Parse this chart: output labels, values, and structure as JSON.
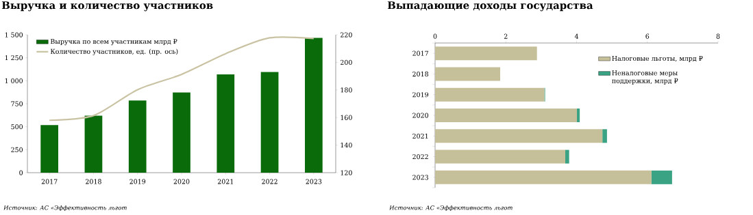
{
  "chart_data": [
    {
      "type": "bar",
      "title": "Выручка и количество участников",
      "categories": [
        "2017",
        "2018",
        "2019",
        "2020",
        "2021",
        "2022",
        "2023"
      ],
      "series": [
        {
          "name": "Выручка по всем участникам млрд ₽",
          "type": "bar",
          "color": "#0a6b0a",
          "values": [
            518,
            620,
            785,
            872,
            1069,
            1095,
            1467
          ]
        },
        {
          "name": "Количество участников, ед. (пр. ось)",
          "type": "line",
          "axis": "y2",
          "color": "#c9c3a3",
          "values": [
            158,
            161.4,
            180.2,
            191.3,
            206.3,
            217.8,
            217.3
          ]
        }
      ],
      "ylim": [
        0,
        1500
      ],
      "yticks": [
        0,
        250,
        500,
        750,
        {
          "value": 1000,
          "label": "1 000"
        },
        {
          "value": 1250,
          "label": "1 250"
        },
        {
          "value": 1500,
          "label": "1 500"
        }
      ],
      "y2lim": [
        120,
        220
      ],
      "y2ticks": [
        120,
        140,
        160,
        180,
        200,
        220
      ],
      "legend": "top left",
      "annotations": [
        "Источник: АС «Эффективность льгот"
      ]
    },
    {
      "type": "bar",
      "orientation": "horizontal",
      "stacked": true,
      "title": "Выпадающие доходы государства",
      "categories": [
        "2017",
        "2018",
        "2019",
        "2020",
        "2021",
        "2022",
        "2023"
      ],
      "series": [
        {
          "name": "Налоговые льготы, млрд ₽",
          "color": "#c5bf9a",
          "values": [
            2.88,
            1.84,
            3.09,
            4.01,
            4.73,
            3.68,
            6.12
          ]
        },
        {
          "name": "Неналоговые меры поддержки, млрд ₽",
          "color": "#3aa383",
          "values": [
            0,
            0,
            0.02,
            0.08,
            0.13,
            0.11,
            0.58
          ]
        }
      ],
      "xlim": [
        0,
        8
      ],
      "xticks": [
        0,
        2,
        4,
        6,
        8
      ],
      "legend": "top right",
      "annotations": [
        "Источник: АС «Эффективность льгот"
      ]
    }
  ]
}
